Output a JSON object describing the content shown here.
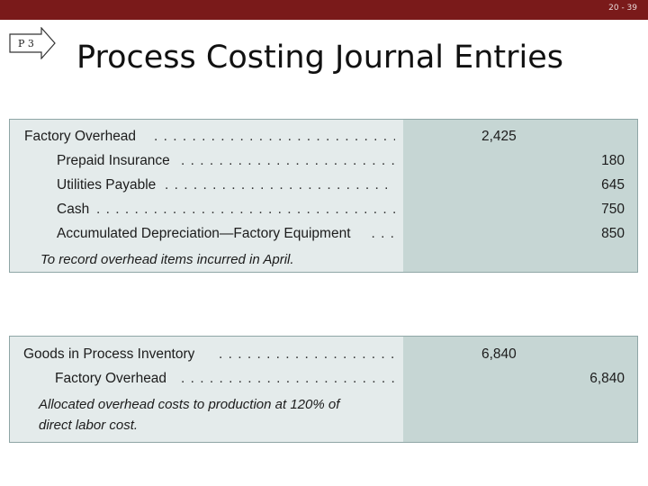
{
  "slide": {
    "number": "20 - 39",
    "badge": "P 3"
  },
  "title": "Process Costing Journal Entries",
  "entry1": {
    "lines": [
      {
        "account": "Factory Overhead",
        "debit": "2,425",
        "credit": ""
      },
      {
        "account": "Prepaid Insurance",
        "debit": "",
        "credit": "180"
      },
      {
        "account": "Utilities Payable",
        "debit": "",
        "credit": "645"
      },
      {
        "account": "Cash",
        "debit": "",
        "credit": "750"
      },
      {
        "account": "Accumulated Depreciation—Factory Equipment",
        "debit": "",
        "credit": "850"
      }
    ],
    "memo": "To record overhead items incurred in April."
  },
  "entry2": {
    "lines": [
      {
        "account": "Goods in Process Inventory",
        "debit": "6,840",
        "credit": ""
      },
      {
        "account": "Factory Overhead",
        "debit": "",
        "credit": "6,840"
      }
    ],
    "memo_line1": "Allocated overhead costs to production at 120% of",
    "memo_line2": "direct labor cost."
  },
  "colors": {
    "topbar": "#7a1a1a",
    "panel": "#e4ebeb",
    "amount_panel": "#c6d6d4"
  }
}
